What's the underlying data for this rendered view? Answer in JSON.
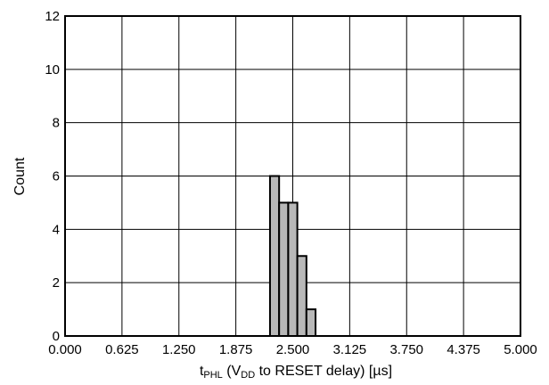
{
  "chart_data": {
    "type": "bar",
    "title": "",
    "xlabel": {
      "main": "t",
      "main_sub": "PHL",
      "paren_open": " (V",
      "paren_sub": "DD",
      "rest": " to RESET delay) [µs]"
    },
    "ylabel": "Count",
    "xlim": [
      0.0,
      5.0
    ],
    "ylim": [
      0,
      12
    ],
    "xticks": [
      "0.000",
      "0.625",
      "1.250",
      "1.875",
      "2.500",
      "3.125",
      "3.750",
      "4.375",
      "5.000"
    ],
    "yticks": [
      "0",
      "2",
      "4",
      "6",
      "8",
      "10",
      "12"
    ],
    "grid": true,
    "bin_width": 0.1,
    "bins": [
      {
        "start": 2.25,
        "count": 6
      },
      {
        "start": 2.35,
        "count": 5
      },
      {
        "start": 2.45,
        "count": 5
      },
      {
        "start": 2.55,
        "count": 3
      },
      {
        "start": 2.65,
        "count": 1
      }
    ],
    "bar_color": "#b8b8b8",
    "edge_color": "#000000"
  }
}
